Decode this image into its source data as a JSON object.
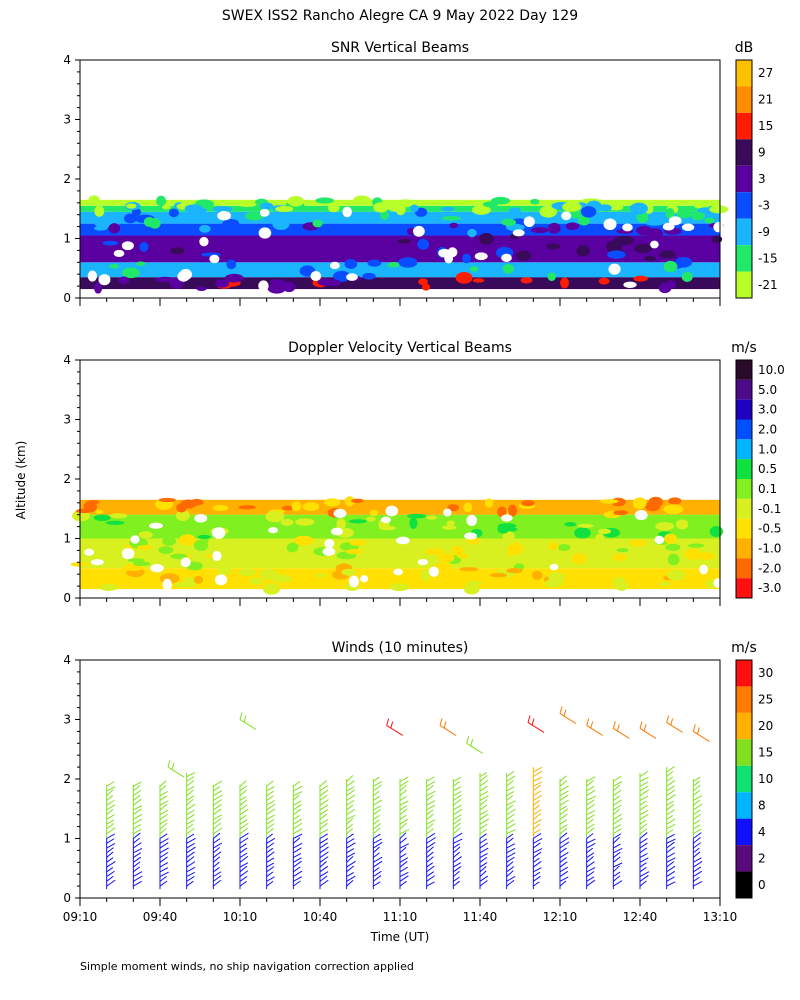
{
  "figure": {
    "title": "SWEX ISS2 Rancho Alegre CA   9 May 2022 Day 129",
    "ylabel": "Altitude (km)",
    "xlabel": "Time (UT)",
    "footnote": "Simple moment winds, no ship navigation correction applied"
  },
  "chart_data": [
    {
      "type": "heatmap",
      "name": "snr",
      "title": "SNR Vertical Beams",
      "unit": "dB",
      "ylim": [
        0,
        4
      ],
      "yticks": [
        "0",
        "1",
        "2",
        "3",
        "4"
      ],
      "xticks": [
        "09:10",
        "09:40",
        "10:10",
        "10:40",
        "11:10",
        "11:40",
        "12:10",
        "12:40",
        "13:10"
      ],
      "colorbar": {
        "labels": [
          "27",
          "21",
          "15",
          "9",
          "3",
          "-3",
          "-9",
          "-15",
          "-21"
        ],
        "colors": [
          "#ffc000",
          "#ff8c00",
          "#ff1c00",
          "#3a0a5a",
          "#5a00a0",
          "#0a4cff",
          "#1ab4ff",
          "#22e86a",
          "#b8ff2a"
        ]
      },
      "layers": [
        {
          "from_km": 0.15,
          "to_km": 0.35,
          "label": "9"
        },
        {
          "from_km": 0.35,
          "to_km": 0.6,
          "label": "-9"
        },
        {
          "from_km": 0.6,
          "to_km": 1.05,
          "label": "3"
        },
        {
          "from_km": 1.05,
          "to_km": 1.25,
          "label": "-3"
        },
        {
          "from_km": 1.25,
          "to_km": 1.45,
          "label": "-9"
        },
        {
          "from_km": 1.45,
          "to_km": 1.55,
          "label": "-15"
        },
        {
          "from_km": 1.55,
          "to_km": 1.65,
          "label": "-21"
        }
      ]
    },
    {
      "type": "heatmap",
      "name": "doppler",
      "title": "Doppler Velocity Vertical Beams",
      "unit": "m/s",
      "ylim": [
        0,
        4
      ],
      "yticks": [
        "0",
        "1",
        "2",
        "3",
        "4"
      ],
      "xticks": [
        "09:10",
        "09:40",
        "10:10",
        "10:40",
        "11:10",
        "11:40",
        "12:10",
        "12:40",
        "13:10"
      ],
      "colorbar": {
        "labels": [
          "10.0",
          "5.0",
          "3.0",
          "2.0",
          "1.0",
          "0.5",
          "0.1",
          "-0.1",
          "-0.5",
          "-1.0",
          "-2.0",
          "-3.0"
        ],
        "colors": [
          "#2a0a2a",
          "#4a0a8a",
          "#2000c0",
          "#0050ff",
          "#00b4ff",
          "#10e040",
          "#80f020",
          "#d8f020",
          "#ffe000",
          "#ffb000",
          "#ff6a00",
          "#ff1010"
        ]
      },
      "layers": [
        {
          "from_km": 0.15,
          "to_km": 0.5,
          "label": "-0.5"
        },
        {
          "from_km": 0.5,
          "to_km": 1.0,
          "label": "-0.1"
        },
        {
          "from_km": 1.0,
          "to_km": 1.4,
          "label": "0.1"
        },
        {
          "from_km": 1.4,
          "to_km": 1.65,
          "label": "-1.0"
        }
      ]
    },
    {
      "type": "scatter",
      "name": "winds",
      "title": "Winds (10 minutes)",
      "unit": "m/s",
      "ylim": [
        0,
        4
      ],
      "yticks": [
        "0",
        "1",
        "2",
        "3",
        "4"
      ],
      "xticks": [
        "09:10",
        "09:40",
        "10:10",
        "10:40",
        "11:10",
        "11:40",
        "12:10",
        "12:40",
        "13:10"
      ],
      "colorbar": {
        "labels": [
          "30",
          "25",
          "20",
          "15",
          "10",
          "8",
          "4",
          "2",
          "0"
        ],
        "colors": [
          "#ff1010",
          "#ff7a00",
          "#ffb000",
          "#80e020",
          "#10e070",
          "#00b4ff",
          "#1010ff",
          "#5a0a7a",
          "#000000"
        ]
      },
      "profile_times_min": [
        10,
        20,
        30,
        40,
        50,
        60,
        70,
        80,
        90,
        100,
        110,
        120,
        130,
        140,
        150,
        160,
        170,
        180,
        190,
        200,
        210,
        220,
        230
      ],
      "profiles": [
        {
          "top_km": 1.9,
          "lower_speed": "4",
          "upper_speed": "15"
        },
        {
          "top_km": 1.9,
          "lower_speed": "4",
          "upper_speed": "15"
        },
        {
          "top_km": 1.9,
          "lower_speed": "4",
          "upper_speed": "15"
        },
        {
          "top_km": 2.1,
          "lower_speed": "4",
          "upper_speed": "15"
        },
        {
          "top_km": 1.9,
          "lower_speed": "4",
          "upper_speed": "15"
        },
        {
          "top_km": 1.9,
          "lower_speed": "4",
          "upper_speed": "15"
        },
        {
          "top_km": 1.9,
          "lower_speed": "4",
          "upper_speed": "15"
        },
        {
          "top_km": 1.9,
          "lower_speed": "4",
          "upper_speed": "15"
        },
        {
          "top_km": 1.9,
          "lower_speed": "4",
          "upper_speed": "15"
        },
        {
          "top_km": 2.0,
          "lower_speed": "4",
          "upper_speed": "15"
        },
        {
          "top_km": 2.0,
          "lower_speed": "4",
          "upper_speed": "15"
        },
        {
          "top_km": 2.0,
          "lower_speed": "4",
          "upper_speed": "15"
        },
        {
          "top_km": 2.0,
          "lower_speed": "4",
          "upper_speed": "15"
        },
        {
          "top_km": 2.0,
          "lower_speed": "4",
          "upper_speed": "15"
        },
        {
          "top_km": 2.1,
          "lower_speed": "4",
          "upper_speed": "15"
        },
        {
          "top_km": 2.1,
          "lower_speed": "4",
          "upper_speed": "15"
        },
        {
          "top_km": 2.2,
          "lower_speed": "4",
          "upper_speed": "20"
        },
        {
          "top_km": 2.0,
          "lower_speed": "4",
          "upper_speed": "15"
        },
        {
          "top_km": 2.0,
          "lower_speed": "4",
          "upper_speed": "15"
        },
        {
          "top_km": 2.0,
          "lower_speed": "4",
          "upper_speed": "15"
        },
        {
          "top_km": 2.1,
          "lower_speed": "4",
          "upper_speed": "15"
        },
        {
          "top_km": 2.2,
          "lower_speed": "4",
          "upper_speed": "15"
        },
        {
          "top_km": 2.0,
          "lower_speed": "4",
          "upper_speed": "15"
        }
      ],
      "upper_barbs": [
        {
          "t_min": 60,
          "alt_km": 3.0,
          "speed": "15"
        },
        {
          "t_min": 115,
          "alt_km": 2.9,
          "speed": "30"
        },
        {
          "t_min": 135,
          "alt_km": 2.9,
          "speed": "25"
        },
        {
          "t_min": 145,
          "alt_km": 2.6,
          "speed": "15"
        },
        {
          "t_min": 168,
          "alt_km": 2.95,
          "speed": "30"
        },
        {
          "t_min": 180,
          "alt_km": 3.1,
          "speed": "25"
        },
        {
          "t_min": 190,
          "alt_km": 2.9,
          "speed": "25"
        },
        {
          "t_min": 200,
          "alt_km": 2.85,
          "speed": "25"
        },
        {
          "t_min": 210,
          "alt_km": 2.85,
          "speed": "25"
        },
        {
          "t_min": 220,
          "alt_km": 2.95,
          "speed": "25"
        },
        {
          "t_min": 230,
          "alt_km": 2.8,
          "speed": "25"
        },
        {
          "t_min": 33,
          "alt_km": 2.2,
          "speed": "15"
        }
      ]
    }
  ]
}
